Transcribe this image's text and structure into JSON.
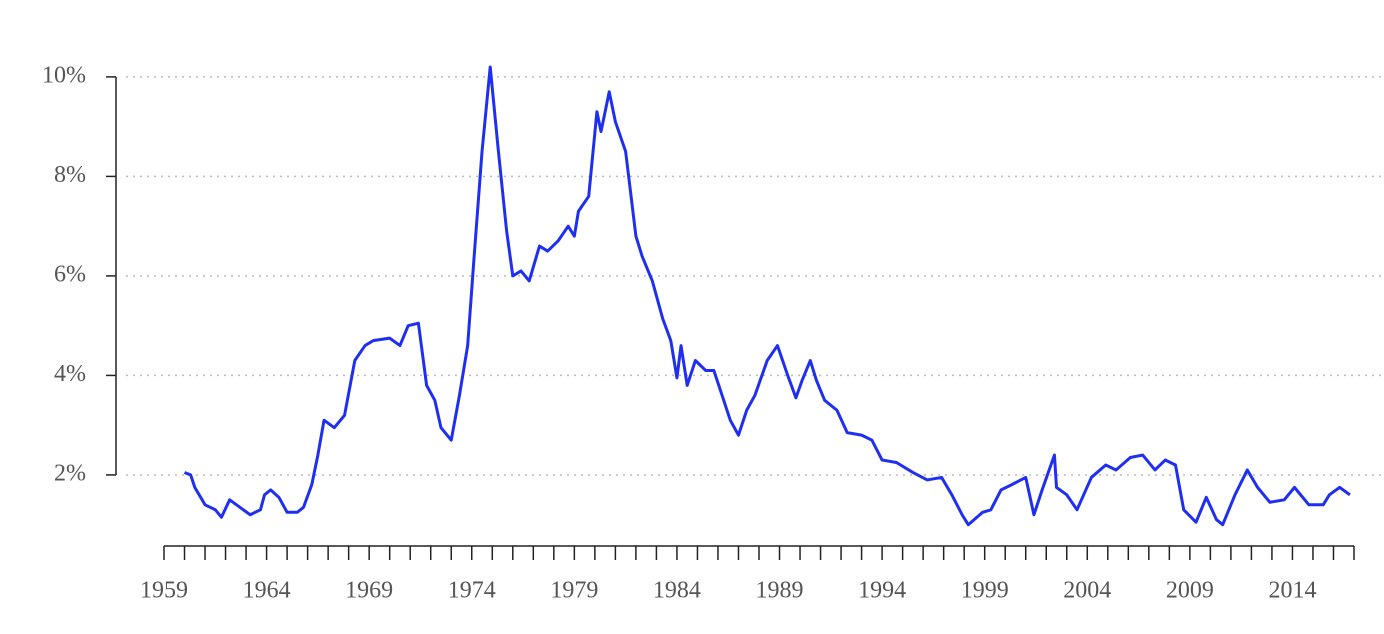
{
  "chart_data": {
    "type": "line",
    "x": [
      1960.0,
      1960.3,
      1960.5,
      1961.0,
      1961.5,
      1961.8,
      1962.2,
      1962.7,
      1963.2,
      1963.7,
      1963.9,
      1964.2,
      1964.6,
      1965.0,
      1965.5,
      1965.8,
      1966.2,
      1966.5,
      1966.8,
      1967.3,
      1967.8,
      1968.3,
      1968.8,
      1969.2,
      1970.0,
      1970.5,
      1970.9,
      1971.4,
      1971.8,
      1972.2,
      1972.5,
      1973.0,
      1973.4,
      1973.8,
      1974.1,
      1974.5,
      1974.9,
      1975.3,
      1975.7,
      1976.0,
      1976.4,
      1976.8,
      1977.3,
      1977.7,
      1978.2,
      1978.7,
      1979.0,
      1979.2,
      1979.7,
      1980.1,
      1980.3,
      1980.7,
      1981.0,
      1981.5,
      1982.0,
      1982.3,
      1982.8,
      1983.3,
      1983.7,
      1984.0,
      1984.2,
      1984.5,
      1984.9,
      1985.4,
      1985.8,
      1986.2,
      1986.6,
      1987.0,
      1987.4,
      1987.8,
      1988.4,
      1988.9,
      1989.4,
      1989.8,
      1990.1,
      1990.5,
      1990.8,
      1991.2,
      1991.8,
      1992.3,
      1993.0,
      1993.5,
      1994.0,
      1994.7,
      1995.5,
      1996.2,
      1996.9,
      1997.4,
      1997.9,
      1998.2,
      1998.9,
      1999.3,
      1999.8,
      2000.3,
      2001.0,
      2001.4,
      2001.8,
      2002.4,
      2002.5,
      2003.0,
      2003.5,
      2004.2,
      2004.9,
      2005.4,
      2006.1,
      2006.7,
      2007.3,
      2007.8,
      2008.3,
      2008.7,
      2009.3,
      2009.8,
      2010.3,
      2010.6,
      2011.2,
      2011.8,
      2012.3,
      2012.9,
      2013.6,
      2014.1,
      2014.8,
      2015.5,
      2015.8,
      2016.3,
      2016.8
    ],
    "series": [
      {
        "color": "#1f2ff2",
        "values": [
          2.05,
          2.0,
          1.75,
          1.4,
          1.3,
          1.15,
          1.5,
          1.35,
          1.2,
          1.3,
          1.6,
          1.7,
          1.55,
          1.25,
          1.25,
          1.35,
          1.8,
          2.4,
          3.1,
          2.95,
          3.2,
          4.3,
          4.6,
          4.7,
          4.75,
          4.6,
          5.0,
          5.05,
          3.8,
          3.5,
          2.95,
          2.7,
          3.6,
          4.6,
          6.3,
          8.5,
          10.2,
          8.5,
          6.9,
          6.0,
          6.1,
          5.9,
          6.6,
          6.5,
          6.7,
          7.0,
          6.8,
          7.3,
          7.6,
          9.3,
          8.9,
          9.7,
          9.1,
          8.5,
          6.8,
          6.4,
          5.9,
          5.15,
          4.7,
          3.95,
          4.6,
          3.8,
          4.3,
          4.1,
          4.1,
          3.6,
          3.1,
          2.8,
          3.3,
          3.6,
          4.3,
          4.6,
          4.0,
          3.55,
          3.9,
          4.3,
          3.9,
          3.5,
          3.3,
          2.85,
          2.8,
          2.7,
          2.3,
          2.25,
          2.05,
          1.9,
          1.95,
          1.6,
          1.2,
          1.0,
          1.25,
          1.3,
          1.7,
          1.8,
          1.95,
          1.2,
          1.7,
          2.4,
          1.75,
          1.6,
          1.3,
          1.95,
          2.2,
          2.1,
          2.35,
          2.4,
          2.1,
          2.3,
          2.2,
          1.3,
          1.05,
          1.55,
          1.1,
          1.0,
          1.6,
          2.1,
          1.75,
          1.45,
          1.5,
          1.75,
          1.4,
          1.4,
          1.6,
          1.75,
          1.6
        ]
      }
    ],
    "xlim": [
      1959,
      2017
    ],
    "xticks": [
      1959,
      1964,
      1969,
      1974,
      1979,
      1984,
      1989,
      1994,
      1999,
      2004,
      2009,
      2014
    ],
    "xticks_minor": [
      1959,
      1960,
      1961,
      1962,
      1963,
      1964,
      1965,
      1966,
      1967,
      1968,
      1969,
      1970,
      1971,
      1972,
      1973,
      1974,
      1975,
      1976,
      1977,
      1978,
      1979,
      1980,
      1981,
      1982,
      1983,
      1984,
      1985,
      1986,
      1987,
      1988,
      1989,
      1990,
      1991,
      1992,
      1993,
      1994,
      1995,
      1996,
      1997,
      1998,
      1999,
      2000,
      2001,
      2002,
      2003,
      2004,
      2005,
      2006,
      2007,
      2008,
      2009,
      2010,
      2011,
      2012,
      2013,
      2014,
      2015,
      2016,
      2017
    ],
    "ylim": [
      0.6,
      10.4
    ],
    "yticks": [
      {
        "value": 2,
        "label": "2%"
      },
      {
        "value": 4,
        "label": "4%"
      },
      {
        "value": 6,
        "label": "6%"
      },
      {
        "value": 8,
        "label": "8%"
      },
      {
        "value": 10,
        "label": "10%"
      }
    ],
    "grid": true
  }
}
